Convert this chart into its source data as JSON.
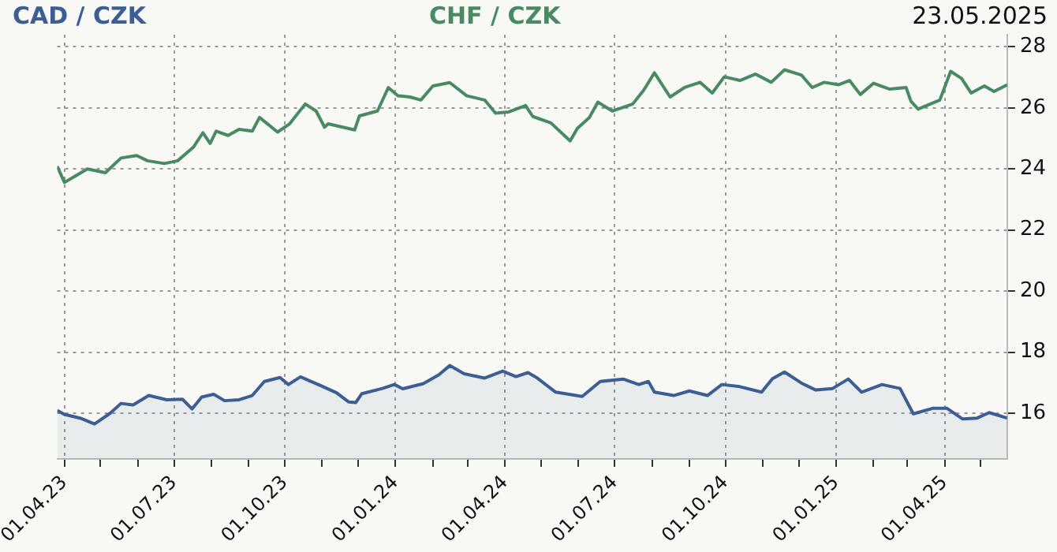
{
  "chart_data": {
    "type": "line",
    "legend": "top",
    "grid": true,
    "marker": "none",
    "line_style": "solid",
    "annotations": [
      "23.05.2025"
    ],
    "xlim": [
      "2023-03-26",
      "2025-05-23"
    ],
    "xticks": [
      {
        "value": "2023-04-01",
        "label": "01.04.23"
      },
      {
        "value": "2023-05-01",
        "label": null
      },
      {
        "value": "2023-06-01",
        "label": null
      },
      {
        "value": "2023-07-01",
        "label": "01.07.23"
      },
      {
        "value": "2023-08-01",
        "label": null
      },
      {
        "value": "2023-09-01",
        "label": null
      },
      {
        "value": "2023-10-01",
        "label": "01.10.23"
      },
      {
        "value": "2023-11-01",
        "label": null
      },
      {
        "value": "2023-12-01",
        "label": null
      },
      {
        "value": "2024-01-01",
        "label": "01.01.24"
      },
      {
        "value": "2024-02-01",
        "label": null
      },
      {
        "value": "2024-03-01",
        "label": null
      },
      {
        "value": "2024-04-01",
        "label": "01.04.24"
      },
      {
        "value": "2024-05-01",
        "label": null
      },
      {
        "value": "2024-06-01",
        "label": null
      },
      {
        "value": "2024-07-01",
        "label": "01.07.24"
      },
      {
        "value": "2024-08-01",
        "label": null
      },
      {
        "value": "2024-09-01",
        "label": null
      },
      {
        "value": "2024-10-01",
        "label": "01.10.24"
      },
      {
        "value": "2024-11-01",
        "label": null
      },
      {
        "value": "2024-12-01",
        "label": null
      },
      {
        "value": "2025-01-01",
        "label": "01.01.25"
      },
      {
        "value": "2025-02-01",
        "label": null
      },
      {
        "value": "2025-03-01",
        "label": null
      },
      {
        "value": "2025-04-01",
        "label": "01.04.25"
      },
      {
        "value": "2025-05-01",
        "label": null
      }
    ],
    "ylim": [
      14.5,
      28.4
    ],
    "yticks": [
      16,
      18,
      20,
      22,
      24,
      26,
      28
    ],
    "series": [
      {
        "name": "CAD / CZK",
        "type": "area",
        "color": "#3d5e94",
        "x": [
          "2023-03-26",
          "2023-04-01",
          "2023-04-14",
          "2023-04-26",
          "2023-05-09",
          "2023-05-18",
          "2023-05-28",
          "2023-06-10",
          "2023-06-25",
          "2023-07-08",
          "2023-07-16",
          "2023-07-24",
          "2023-08-03",
          "2023-08-12",
          "2023-08-24",
          "2023-09-04",
          "2023-09-14",
          "2023-09-27",
          "2023-10-04",
          "2023-10-14",
          "2023-10-31",
          "2023-11-13",
          "2023-11-23",
          "2023-11-29",
          "2023-12-04",
          "2023-12-21",
          "2023-12-31",
          "2024-01-07",
          "2024-01-24",
          "2024-02-06",
          "2024-02-15",
          "2024-02-27",
          "2024-03-15",
          "2024-03-30",
          "2024-04-10",
          "2024-04-20",
          "2024-04-27",
          "2024-05-13",
          "2024-06-04",
          "2024-06-19",
          "2024-07-08",
          "2024-07-21",
          "2024-07-29",
          "2024-08-03",
          "2024-08-19",
          "2024-09-01",
          "2024-09-16",
          "2024-09-28",
          "2024-10-13",
          "2024-10-31",
          "2024-11-09",
          "2024-11-19",
          "2024-12-03",
          "2024-12-15",
          "2024-12-29",
          "2025-01-11",
          "2025-01-22",
          "2025-02-08",
          "2025-02-23",
          "2025-03-06",
          "2025-03-22",
          "2025-04-03",
          "2025-04-16",
          "2025-04-28",
          "2025-05-08",
          "2025-05-23"
        ],
        "values": [
          16.09,
          15.96,
          15.84,
          15.65,
          16.0,
          16.32,
          16.27,
          16.58,
          16.44,
          16.46,
          16.14,
          16.53,
          16.62,
          16.41,
          16.44,
          16.58,
          17.04,
          17.17,
          16.94,
          17.19,
          16.9,
          16.67,
          16.37,
          16.35,
          16.64,
          16.81,
          16.94,
          16.8,
          16.97,
          17.26,
          17.56,
          17.29,
          17.15,
          17.38,
          17.2,
          17.33,
          17.17,
          16.69,
          16.55,
          17.04,
          17.12,
          16.94,
          17.04,
          16.69,
          16.58,
          16.73,
          16.58,
          16.94,
          16.87,
          16.69,
          17.13,
          17.35,
          16.99,
          16.76,
          16.81,
          17.12,
          16.69,
          16.94,
          16.81,
          15.98,
          16.16,
          16.16,
          15.81,
          15.84,
          16.02,
          15.84
        ]
      },
      {
        "name": "CHF / CZK",
        "type": "line",
        "color": "#4a8a62",
        "x": [
          "2023-03-26",
          "2023-04-01",
          "2023-04-10",
          "2023-04-20",
          "2023-05-05",
          "2023-05-18",
          "2023-05-31",
          "2023-06-09",
          "2023-06-23",
          "2023-07-04",
          "2023-07-17",
          "2023-07-25",
          "2023-07-31",
          "2023-08-05",
          "2023-08-15",
          "2023-08-24",
          "2023-09-04",
          "2023-09-10",
          "2023-09-25",
          "2023-10-05",
          "2023-10-18",
          "2023-10-27",
          "2023-11-03",
          "2023-11-06",
          "2023-11-28",
          "2023-12-02",
          "2023-12-17",
          "2023-12-26",
          "2024-01-03",
          "2024-01-13",
          "2024-01-22",
          "2024-02-01",
          "2024-02-15",
          "2024-02-29",
          "2024-03-15",
          "2024-03-24",
          "2024-04-04",
          "2024-04-18",
          "2024-04-24",
          "2024-05-09",
          "2024-05-25",
          "2024-05-31",
          "2024-06-10",
          "2024-06-17",
          "2024-06-29",
          "2024-07-16",
          "2024-07-25",
          "2024-08-03",
          "2024-08-16",
          "2024-08-28",
          "2024-09-10",
          "2024-09-20",
          "2024-09-30",
          "2024-10-13",
          "2024-10-26",
          "2024-11-08",
          "2024-11-19",
          "2024-12-03",
          "2024-12-12",
          "2024-12-22",
          "2025-01-03",
          "2025-01-12",
          "2025-01-21",
          "2025-02-01",
          "2025-02-14",
          "2025-02-28",
          "2025-03-04",
          "2025-03-10",
          "2025-03-28",
          "2025-04-06",
          "2025-04-15",
          "2025-04-23",
          "2025-05-04",
          "2025-05-12",
          "2025-05-23"
        ],
        "values": [
          24.09,
          23.56,
          23.77,
          24.0,
          23.88,
          24.36,
          24.44,
          24.27,
          24.18,
          24.27,
          24.71,
          25.19,
          24.84,
          25.24,
          25.1,
          25.3,
          25.24,
          25.69,
          25.21,
          25.48,
          26.13,
          25.9,
          25.37,
          25.48,
          25.28,
          25.74,
          25.9,
          26.67,
          26.4,
          26.36,
          26.26,
          26.72,
          26.83,
          26.4,
          26.26,
          25.83,
          25.87,
          26.08,
          25.72,
          25.51,
          24.92,
          25.33,
          25.69,
          26.19,
          25.9,
          26.13,
          26.58,
          27.15,
          26.36,
          26.67,
          26.84,
          26.49,
          27.02,
          26.9,
          27.11,
          26.84,
          27.25,
          27.08,
          26.67,
          26.84,
          26.76,
          26.9,
          26.44,
          26.81,
          26.62,
          26.67,
          26.22,
          25.96,
          26.26,
          27.2,
          26.97,
          26.49,
          26.72,
          26.54,
          26.76
        ]
      }
    ]
  }
}
